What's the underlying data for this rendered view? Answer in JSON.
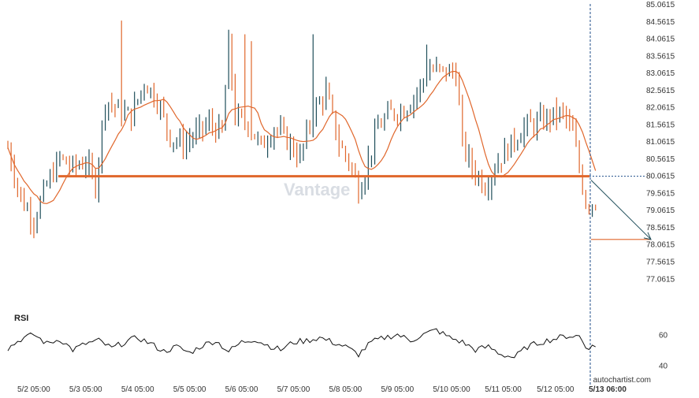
{
  "chart_data": {
    "type": "candlestick",
    "price_axis": {
      "range": [
        76.7,
        85.0615
      ],
      "ticks": [
        "85.0615",
        "84.5615",
        "84.0615",
        "83.5615",
        "83.0615",
        "82.5615",
        "82.0615",
        "81.5615",
        "81.0615",
        "80.5615",
        "80.0615",
        "79.5615",
        "79.0615",
        "78.5615",
        "78.0615",
        "77.5615",
        "77.0615"
      ]
    },
    "x_axis": {
      "labels": [
        "5/2 05:00",
        "5/3 05:00",
        "5/4 05:00",
        "5/5 05:00",
        "5/6 05:00",
        "5/7 05:00",
        "5/8 05:00",
        "5/9 05:00",
        "5/10 05:00",
        "5/11 05:00",
        "5/12 05:00",
        "5/13 06:00"
      ],
      "label_positions_index": [
        0,
        16,
        32,
        48,
        64,
        80,
        96,
        112,
        128,
        144,
        160,
        176
      ]
    },
    "bar_count": 182,
    "series": [
      {
        "type": "bars",
        "up_color": "#1f4e5a",
        "down_color": "#e0672c",
        "anchors": [
          [
            0,
            80.9
          ],
          [
            4,
            79.4
          ],
          [
            8,
            78.8
          ],
          [
            12,
            79.8
          ],
          [
            16,
            80.6
          ],
          [
            20,
            80.3
          ],
          [
            24,
            80.5
          ],
          [
            27,
            79.8
          ],
          [
            30,
            82.3
          ],
          [
            34,
            82.0
          ],
          [
            38,
            81.8
          ],
          [
            42,
            82.8
          ],
          [
            46,
            82.3
          ],
          [
            50,
            81.2
          ],
          [
            54,
            81.0
          ],
          [
            58,
            81.3
          ],
          [
            62,
            81.6
          ],
          [
            66,
            81.3
          ],
          [
            68,
            83.9
          ],
          [
            70,
            81.8
          ],
          [
            74,
            81.6
          ],
          [
            78,
            80.9
          ],
          [
            82,
            81.5
          ],
          [
            86,
            81.1
          ],
          [
            90,
            80.6
          ],
          [
            94,
            81.9
          ],
          [
            98,
            82.5
          ],
          [
            102,
            81.0
          ],
          [
            105,
            80.5
          ],
          [
            108,
            79.7
          ],
          [
            110,
            80.2
          ],
          [
            114,
            81.5
          ],
          [
            118,
            81.9
          ],
          [
            122,
            82.0
          ],
          [
            126,
            82.5
          ],
          [
            130,
            83.2
          ],
          [
            134,
            83.1
          ],
          [
            138,
            83.1
          ],
          [
            140,
            81.0
          ],
          [
            143,
            80.3
          ],
          [
            147,
            79.8
          ],
          [
            151,
            80.5
          ],
          [
            155,
            81.0
          ],
          [
            159,
            81.5
          ],
          [
            163,
            81.6
          ],
          [
            167,
            81.8
          ],
          [
            171,
            81.9
          ],
          [
            174,
            81.3
          ],
          [
            176,
            80.3
          ],
          [
            178,
            79.3
          ]
        ],
        "spikes": [
          [
            35,
            84.6
          ],
          [
            73,
            84.2
          ],
          [
            75,
            84.0
          ],
          [
            94,
            84.2
          ],
          [
            129,
            83.9
          ]
        ]
      },
      {
        "name": "",
        "type": "moving_average",
        "color": "#e0672c"
      }
    ],
    "support_line": {
      "value": 80.0615,
      "color": "#e0672c"
    },
    "forecast_arrow": {
      "from_value": 79.95,
      "to_value": 78.22,
      "color": "#1f4e5a"
    },
    "target_line": {
      "value": 78.22,
      "color": "#e0672c"
    },
    "rsi": {
      "title": "RSI",
      "ticks": [
        "60",
        "40"
      ],
      "range": [
        34,
        70
      ],
      "anchors": [
        [
          0,
          51
        ],
        [
          4,
          57
        ],
        [
          8,
          60
        ],
        [
          12,
          54
        ],
        [
          16,
          57
        ],
        [
          20,
          50
        ],
        [
          24,
          54
        ],
        [
          28,
          56
        ],
        [
          32,
          51
        ],
        [
          36,
          55
        ],
        [
          40,
          58
        ],
        [
          44,
          54
        ],
        [
          48,
          49
        ],
        [
          52,
          52
        ],
        [
          56,
          48
        ],
        [
          60,
          53
        ],
        [
          64,
          56
        ],
        [
          68,
          49
        ],
        [
          72,
          55
        ],
        [
          76,
          57
        ],
        [
          80,
          53
        ],
        [
          84,
          50
        ],
        [
          88,
          55
        ],
        [
          92,
          56
        ],
        [
          96,
          58
        ],
        [
          100,
          55
        ],
        [
          104,
          52
        ],
        [
          108,
          47
        ],
        [
          112,
          55
        ],
        [
          116,
          58
        ],
        [
          120,
          60
        ],
        [
          124,
          56
        ],
        [
          128,
          60
        ],
        [
          132,
          63
        ],
        [
          136,
          58
        ],
        [
          140,
          55
        ],
        [
          144,
          50
        ],
        [
          148,
          52
        ],
        [
          152,
          47
        ],
        [
          156,
          45
        ],
        [
          160,
          52
        ],
        [
          164,
          55
        ],
        [
          168,
          57
        ],
        [
          172,
          59
        ],
        [
          176,
          59
        ],
        [
          178,
          52
        ]
      ],
      "color": "#111111"
    },
    "watermark": "Vantage",
    "credit": "autochartist.com"
  }
}
